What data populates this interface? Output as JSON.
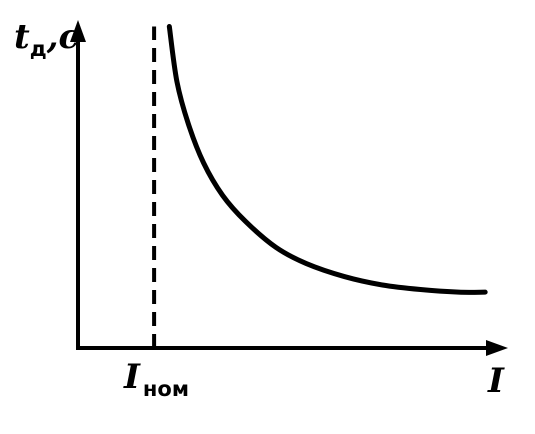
{
  "chart_data": {
    "type": "line",
    "title": "",
    "ylabel": {
      "main": "t",
      "sub": "д",
      "suffix": ",c"
    },
    "xlabel": "I",
    "marker": {
      "main": "I",
      "sub": "ном",
      "x": 1
    },
    "xlim": [
      0,
      5.65
    ],
    "ylim": [
      0,
      5.05
    ],
    "series": [
      {
        "x": [
          1.2,
          1.3,
          1.45,
          1.65,
          1.9,
          2.2,
          2.6,
          3.0,
          3.5,
          4.0,
          4.5,
          5.0,
          5.35
        ],
        "values": [
          4.95,
          4.1,
          3.45,
          2.85,
          2.35,
          1.95,
          1.55,
          1.3,
          1.1,
          0.97,
          0.9,
          0.86,
          0.86
        ]
      }
    ],
    "colors": {
      "line": "#000000",
      "background": "#ffffff"
    },
    "grid": false
  }
}
